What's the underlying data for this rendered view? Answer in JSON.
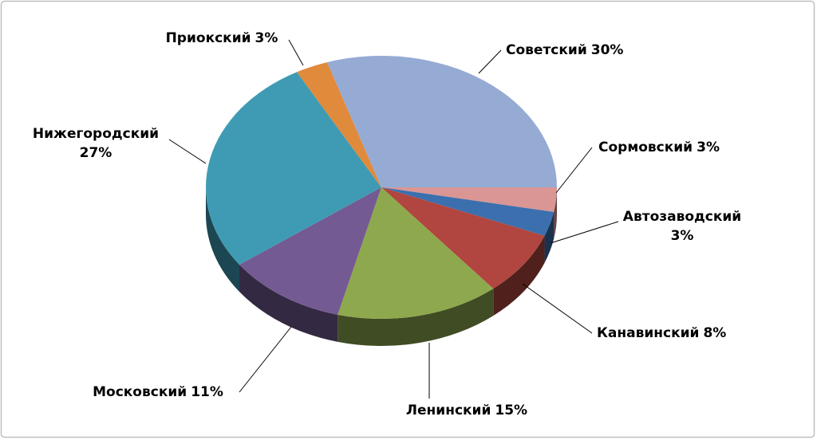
{
  "chart_data": {
    "type": "pie",
    "categories": [
      "Советский",
      "Сормовский",
      "Автозаводский",
      "Канавинский",
      "Ленинский",
      "Московский",
      "Нижегородский",
      "Приокский"
    ],
    "values": [
      30,
      3,
      3,
      8,
      15,
      11,
      27,
      3
    ],
    "value_labels": [
      "30%",
      "3%",
      "3%",
      "8%",
      "15%",
      "11%",
      "27%",
      "3%"
    ],
    "colors": [
      "#95abd4",
      "#d99694",
      "#3b6fae",
      "#b0463f",
      "#8ea84d",
      "#745a93",
      "#3f9bb3",
      "#e08a3c"
    ]
  }
}
